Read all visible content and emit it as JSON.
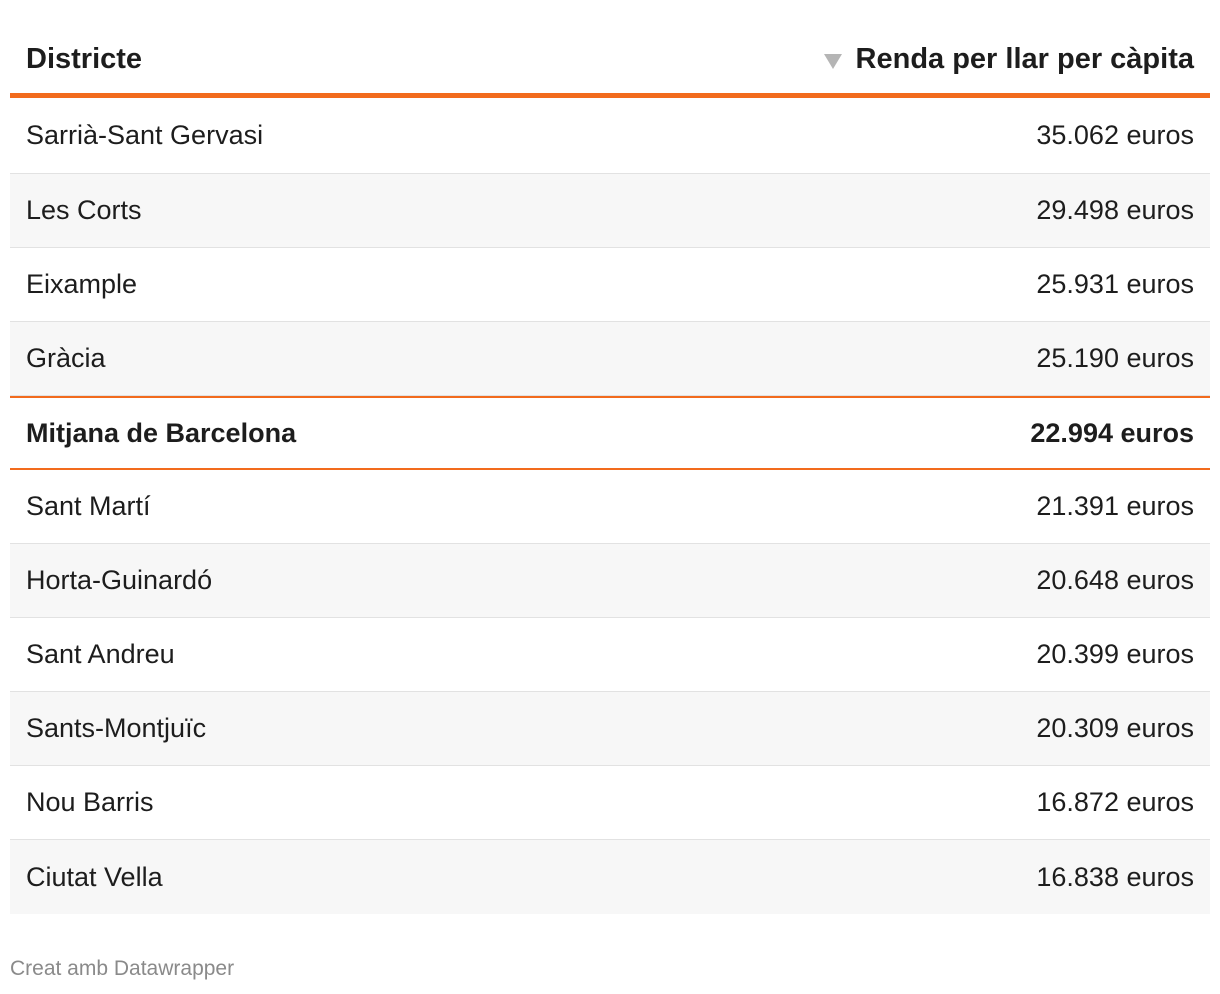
{
  "chart_data": {
    "type": "table",
    "columns": [
      "Districte",
      "Renda per llar per càpita"
    ],
    "sort_column": 1,
    "sort_direction": "descending",
    "rows": [
      {
        "district": "Sarrià-Sant Gervasi",
        "income": "35.062 euros",
        "value": 35062
      },
      {
        "district": "Les Corts",
        "income": "29.498 euros",
        "value": 29498
      },
      {
        "district": "Eixample",
        "income": "25.931 euros",
        "value": 25931
      },
      {
        "district": "Gràcia",
        "income": "25.190 euros",
        "value": 25190
      },
      {
        "district": "Mitjana de Barcelona",
        "income": "22.994 euros",
        "value": 22994,
        "highlight": true
      },
      {
        "district": "Sant Martí",
        "income": "21.391 euros",
        "value": 21391
      },
      {
        "district": "Horta-Guinardó",
        "income": "20.648 euros",
        "value": 20648
      },
      {
        "district": "Sant Andreu",
        "income": "20.399 euros",
        "value": 20399
      },
      {
        "district": "Sants-Montjuïc",
        "income": "20.309 euros",
        "value": 20309
      },
      {
        "district": "Nou Barris",
        "income": "16.872 euros",
        "value": 16872
      },
      {
        "district": "Ciutat Vella",
        "income": "16.838 euros",
        "value": 16838
      }
    ]
  },
  "colors": {
    "accent": "#f26b1d",
    "stripe": "#f7f7f7",
    "row_border": "#e2e2e2"
  },
  "footer": {
    "credit": "Creat amb Datawrapper"
  }
}
